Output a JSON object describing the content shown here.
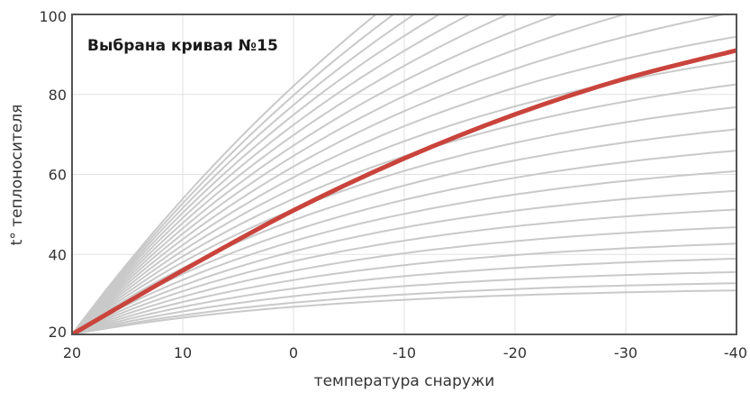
{
  "chart_data": {
    "type": "line",
    "title": "Выбрана кривая №15",
    "xlabel": "температура снаружи",
    "ylabel": "t° теплоносителя",
    "xlim": [
      20,
      -40
    ],
    "ylim": [
      20,
      100
    ],
    "x_ticks": [
      "20",
      "10",
      "0",
      "-10",
      "-20",
      "-30",
      "-40"
    ],
    "y_ticks": [
      "20",
      "40",
      "60",
      "80",
      "100"
    ],
    "grid": true,
    "curve_count": 24,
    "selected_curve": 15,
    "selected_series": {
      "x": [
        20,
        10,
        0,
        -10,
        -20,
        -30,
        -40
      ],
      "values": [
        20,
        36,
        51,
        64,
        75,
        84,
        91
      ]
    },
    "colors": {
      "curves": "#c9c9c9",
      "selected": "#c9443c",
      "grid": "#e2e2e2",
      "frame": "#555555"
    }
  }
}
